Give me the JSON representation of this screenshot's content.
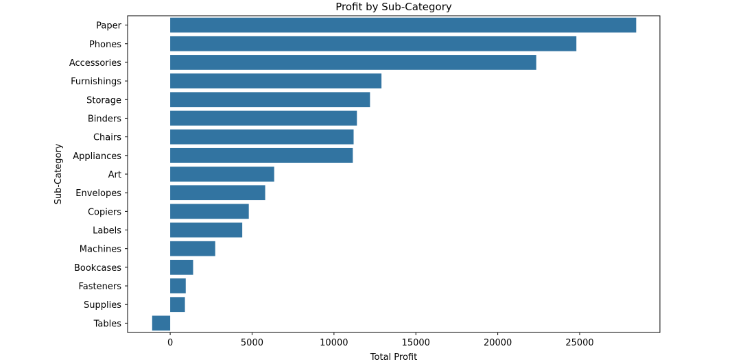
{
  "chart_data": {
    "type": "bar",
    "orientation": "horizontal",
    "title": "Profit by Sub-Category",
    "xlabel": "Total Profit",
    "ylabel": "Sub-Category",
    "categories": [
      "Paper",
      "Phones",
      "Accessories",
      "Furnishings",
      "Storage",
      "Binders",
      "Chairs",
      "Appliances",
      "Art",
      "Envelopes",
      "Copiers",
      "Labels",
      "Machines",
      "Bookcases",
      "Fasteners",
      "Supplies",
      "Tables"
    ],
    "values": [
      28450,
      24800,
      22350,
      12900,
      12200,
      11400,
      11200,
      11150,
      6350,
      5800,
      4800,
      4400,
      2750,
      1400,
      950,
      900,
      -1100
    ],
    "xlim": [
      -2600,
      29900
    ],
    "xticks": [
      0,
      5000,
      10000,
      15000,
      20000,
      25000
    ],
    "grid": false,
    "bar_color": "#3274a1"
  }
}
